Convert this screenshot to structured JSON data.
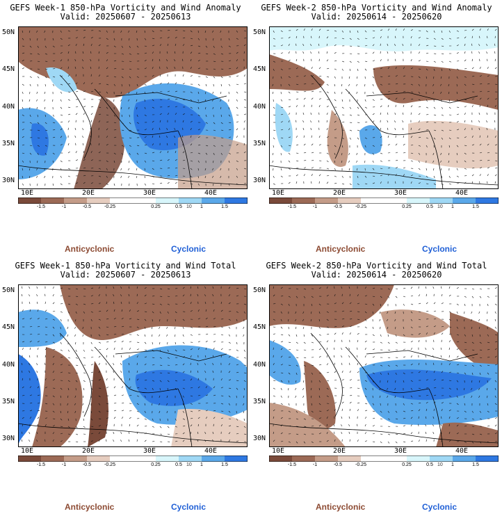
{
  "colors": {
    "anticyclonic": "#8c4a32",
    "cyclonic": "#1f5fd6",
    "colorbar": [
      "#7a4a3a",
      "#9c6a56",
      "#c49c88",
      "#e6cdbf",
      "#ffffff",
      "#ffffff",
      "#d8f6fb",
      "#9fd8f5",
      "#5aa8ea",
      "#2e78e2"
    ]
  },
  "colorbar": {
    "ticks": [
      "-1.5",
      "-1",
      "-0.5",
      "-0.25",
      "0.25",
      "0.5",
      "1",
      "1.5"
    ],
    "scale_label": "10"
  },
  "legend": {
    "anticyclonic": "Anticyclonic",
    "cyclonic": "Cyclonic"
  },
  "axes": {
    "lat_labels": [
      "50N",
      "45N",
      "40N",
      "35N",
      "30N"
    ],
    "lon_labels": [
      "10E",
      "20E",
      "30E",
      "40E"
    ]
  },
  "panels": [
    {
      "title1": "GEFS Week-1 850-hPa Vorticity and Wind Anomaly",
      "title2": "Valid: 20250607 - 20250613"
    },
    {
      "title1": "GEFS Week-2 850-hPa Vorticity and Wind Anomaly",
      "title2": "Valid: 20250614 - 20250620"
    },
    {
      "title1": "GEFS Week-1 850-hPa Vorticity and Wind Total",
      "title2": "Valid: 20250607 - 20250613"
    },
    {
      "title1": "GEFS Week-2 850-hPa Vorticity and Wind Total",
      "title2": "Valid: 20250614 - 20250620"
    }
  ]
}
